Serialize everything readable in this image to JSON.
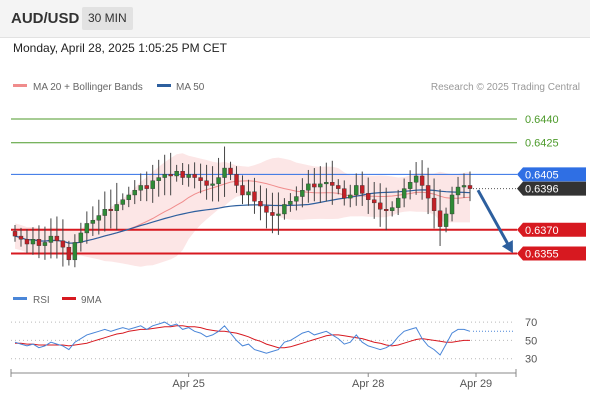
{
  "header": {
    "pair": "AUD/USD",
    "timeframe": "30 MIN"
  },
  "datetime": "Monday, April 28, 2025 1:05:25 PM CET",
  "credit": "Research © 2025 Trading Central",
  "chart_data": [
    {
      "type": "candlestick",
      "legend": [
        {
          "name": "MA 20 + Bollinger Bands",
          "color": "#f08c8c"
        },
        {
          "name": "MA 50",
          "color": "#2d5f9e"
        }
      ],
      "ylim": [
        0.6337,
        0.6452
      ],
      "x_labels": [
        "Apr 25",
        "Apr 28",
        "Apr 29"
      ],
      "x_label_index": [
        29,
        59,
        77
      ],
      "levels": [
        {
          "value": 0.644,
          "label": "0.6440",
          "color": "#4c9a2a",
          "kind": "target"
        },
        {
          "value": 0.6425,
          "label": "0.6425",
          "color": "#4c9a2a",
          "kind": "target"
        },
        {
          "value": 0.6405,
          "label": "0.6405",
          "color": "#2f6fe4",
          "kind": "pivot"
        },
        {
          "value": 0.637,
          "label": "0.6370",
          "color": "#d71920",
          "kind": "support"
        },
        {
          "value": 0.6355,
          "label": "0.6355",
          "color": "#d71920",
          "kind": "support"
        }
      ],
      "last_price": {
        "value": 0.6396,
        "label": "0.6396",
        "color": "#333333"
      },
      "forecast_arrow": {
        "from": 0.6395,
        "to": 0.6356,
        "color": "#2d5f9e"
      },
      "closes": [
        0.6366,
        0.6364,
        0.6361,
        0.6364,
        0.636,
        0.6362,
        0.6366,
        0.6363,
        0.6359,
        0.6351,
        0.6362,
        0.6368,
        0.6374,
        0.6376,
        0.6379,
        0.6383,
        0.6382,
        0.6386,
        0.6389,
        0.6392,
        0.6395,
        0.6398,
        0.6396,
        0.6401,
        0.6403,
        0.6405,
        0.6404,
        0.6407,
        0.6403,
        0.6405,
        0.6403,
        0.6401,
        0.6398,
        0.6399,
        0.6403,
        0.6409,
        0.6405,
        0.6398,
        0.6392,
        0.6394,
        0.6388,
        0.6385,
        0.6381,
        0.6379,
        0.638,
        0.6386,
        0.6388,
        0.6391,
        0.6395,
        0.6399,
        0.6397,
        0.6399,
        0.64,
        0.6398,
        0.6396,
        0.639,
        0.6392,
        0.6398,
        0.6393,
        0.6389,
        0.6387,
        0.6383,
        0.6382,
        0.6384,
        0.639,
        0.6396,
        0.64,
        0.6404,
        0.6398,
        0.639,
        0.6382,
        0.6372,
        0.638,
        0.6392,
        0.6397,
        0.6398,
        0.6396
      ]
    },
    {
      "type": "line",
      "legend": [
        {
          "name": "RSI",
          "color": "#4a86d8"
        },
        {
          "name": "9MA",
          "color": "#d71920"
        }
      ],
      "ylim": [
        22,
        80
      ],
      "y_ticks": [
        70,
        50,
        30
      ],
      "rsi": [
        48,
        46,
        44,
        46,
        42,
        44,
        48,
        46,
        44,
        40,
        48,
        52,
        56,
        58,
        60,
        62,
        60,
        62,
        64,
        62,
        64,
        66,
        62,
        66,
        68,
        70,
        66,
        68,
        62,
        64,
        60,
        58,
        54,
        56,
        60,
        66,
        58,
        50,
        44,
        46,
        40,
        38,
        36,
        38,
        40,
        48,
        50,
        54,
        58,
        60,
        56,
        58,
        60,
        56,
        52,
        46,
        48,
        56,
        48,
        44,
        42,
        40,
        42,
        46,
        54,
        60,
        62,
        64,
        52,
        44,
        40,
        34,
        46,
        58,
        62,
        62,
        60
      ],
      "ma": [
        47,
        47,
        46,
        46,
        45,
        45,
        45,
        45,
        45,
        44,
        45,
        46,
        47,
        49,
        51,
        53,
        55,
        57,
        58,
        60,
        61,
        62,
        62,
        63,
        64,
        65,
        65,
        66,
        66,
        65,
        65,
        64,
        62,
        61,
        60,
        60,
        59,
        58,
        56,
        54,
        51,
        49,
        46,
        44,
        42,
        42,
        43,
        45,
        47,
        49,
        51,
        53,
        55,
        56,
        56,
        55,
        54,
        53,
        52,
        50,
        48,
        47,
        45,
        44,
        45,
        47,
        49,
        51,
        52,
        51,
        50,
        49,
        48,
        48,
        49,
        50,
        50
      ]
    }
  ]
}
